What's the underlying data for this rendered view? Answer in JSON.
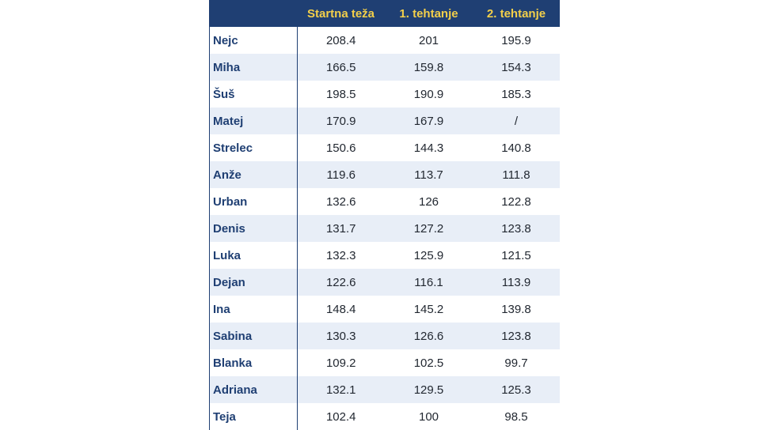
{
  "table": {
    "headers": [
      "",
      "Startna teža",
      "1. tehtanje",
      "2. tehtanje"
    ],
    "rows": [
      [
        "Nejc",
        "208.4",
        "201",
        "195.9"
      ],
      [
        "Miha",
        "166.5",
        "159.8",
        "154.3"
      ],
      [
        "Šuš",
        "198.5",
        "190.9",
        "185.3"
      ],
      [
        "Matej",
        "170.9",
        "167.9",
        "/"
      ],
      [
        "Strelec",
        "150.6",
        "144.3",
        "140.8"
      ],
      [
        "Anže",
        "119.6",
        "113.7",
        "111.8"
      ],
      [
        "Urban",
        "132.6",
        "126",
        "122.8"
      ],
      [
        "Denis",
        "131.7",
        "127.2",
        "123.8"
      ],
      [
        "Luka",
        "132.3",
        "125.9",
        "121.5"
      ],
      [
        "Dejan",
        "122.6",
        "116.1",
        "113.9"
      ],
      [
        "Ina",
        "148.4",
        "145.2",
        "139.8"
      ],
      [
        "Sabina",
        "130.3",
        "126.6",
        "123.8"
      ],
      [
        "Blanka",
        "109.2",
        "102.5",
        "99.7"
      ],
      [
        "Adriana",
        "132.1",
        "129.5",
        "125.3"
      ],
      [
        "Teja",
        "102.4",
        "100",
        "98.5"
      ]
    ]
  },
  "colors": {
    "header_bg": "#1f3f73",
    "header_text": "#f2cf4a",
    "row_alt_bg": "#e8eef7",
    "name_text": "#1f3f73"
  }
}
